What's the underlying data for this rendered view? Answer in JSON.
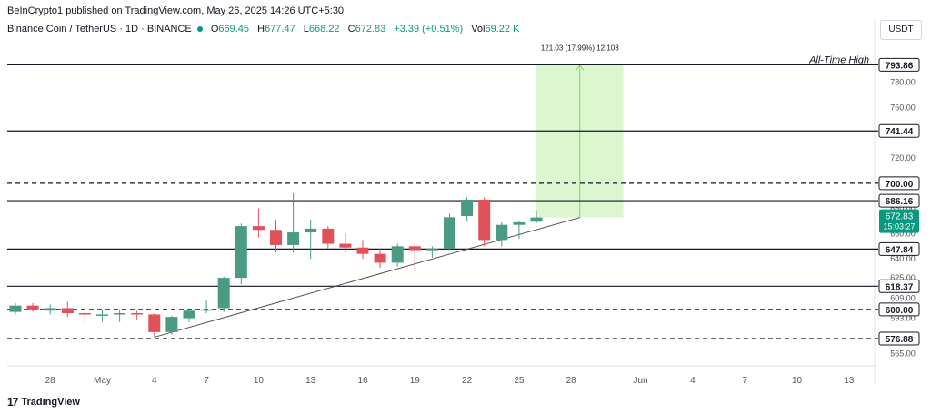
{
  "header": {
    "publisher": "BeInCrypto1 published on TradingView.com, May 26, 2025 14:26 UTC+5:30",
    "symbol": "Binance Coin / TetherUS · 1D · BINANCE",
    "open_label": "O",
    "open": "669.45",
    "high_label": "H",
    "high": "677.47",
    "low_label": "L",
    "low": "668.22",
    "close_label": "C",
    "close": "672.83",
    "change": "+3.39 (+0.51%)",
    "vol_label": "Vol",
    "vol": "69.22 K",
    "currency": "USDT"
  },
  "footer": {
    "logo_mark": "17",
    "brand": "TradingView"
  },
  "colors": {
    "up": "#4a9a84",
    "down": "#e0525a",
    "up_price": "#089981",
    "measure_fill": "#d6f5c8",
    "measure_line": "#7ed957",
    "axis": "#131722"
  },
  "chart_data": {
    "type": "candlestick",
    "title": "Binance Coin / TetherUS · 1D · BINANCE",
    "y_unit": "USDT",
    "ylim": [
      556,
      815
    ],
    "price_scale_ticks": [
      "780.00",
      "760.00",
      "720.00",
      "680.00",
      "660.00",
      "640.00",
      "625.00",
      "609.00",
      "593.00",
      "565.00"
    ],
    "x_tick_labels": [
      {
        "date": "2025-04-28",
        "label": "28"
      },
      {
        "date": "2025-05-01",
        "label": "May"
      },
      {
        "date": "2025-05-04",
        "label": "4"
      },
      {
        "date": "2025-05-07",
        "label": "7"
      },
      {
        "date": "2025-05-10",
        "label": "10"
      },
      {
        "date": "2025-05-13",
        "label": "13"
      },
      {
        "date": "2025-05-16",
        "label": "16"
      },
      {
        "date": "2025-05-19",
        "label": "19"
      },
      {
        "date": "2025-05-22",
        "label": "22"
      },
      {
        "date": "2025-05-25",
        "label": "25"
      },
      {
        "date": "2025-05-28",
        "label": "28"
      },
      {
        "date": "2025-06-01",
        "label": "Jun"
      },
      {
        "date": "2025-06-04",
        "label": "4"
      },
      {
        "date": "2025-06-07",
        "label": "7"
      },
      {
        "date": "2025-06-10",
        "label": "10"
      },
      {
        "date": "2025-06-13",
        "label": "13"
      }
    ],
    "candles": [
      {
        "date": "2025-04-26",
        "o": 598,
        "h": 605,
        "l": 596,
        "c": 603
      },
      {
        "date": "2025-04-27",
        "o": 603,
        "h": 605,
        "l": 598,
        "c": 600
      },
      {
        "date": "2025-04-28",
        "o": 599,
        "h": 604,
        "l": 596,
        "c": 601
      },
      {
        "date": "2025-04-29",
        "o": 601,
        "h": 606,
        "l": 594,
        "c": 597
      },
      {
        "date": "2025-04-30",
        "o": 597,
        "h": 601,
        "l": 588,
        "c": 596
      },
      {
        "date": "2025-05-01",
        "o": 596,
        "h": 600,
        "l": 590,
        "c": 596
      },
      {
        "date": "2025-05-02",
        "o": 596,
        "h": 600,
        "l": 590,
        "c": 597
      },
      {
        "date": "2025-05-03",
        "o": 597,
        "h": 599,
        "l": 592,
        "c": 596
      },
      {
        "date": "2025-05-04",
        "o": 596,
        "h": 597,
        "l": 578,
        "c": 582
      },
      {
        "date": "2025-05-05",
        "o": 582,
        "h": 595,
        "l": 580,
        "c": 594
      },
      {
        "date": "2025-05-06",
        "o": 593,
        "h": 601,
        "l": 590,
        "c": 599
      },
      {
        "date": "2025-05-07",
        "o": 599,
        "h": 607,
        "l": 597,
        "c": 600
      },
      {
        "date": "2025-05-08",
        "o": 601,
        "h": 626,
        "l": 598,
        "c": 625
      },
      {
        "date": "2025-05-09",
        "o": 625,
        "h": 668,
        "l": 620,
        "c": 666
      },
      {
        "date": "2025-05-10",
        "o": 666,
        "h": 680,
        "l": 657,
        "c": 663
      },
      {
        "date": "2025-05-11",
        "o": 663,
        "h": 671,
        "l": 645,
        "c": 651
      },
      {
        "date": "2025-05-12",
        "o": 651,
        "h": 692,
        "l": 645,
        "c": 661
      },
      {
        "date": "2025-05-13",
        "o": 661,
        "h": 671,
        "l": 640,
        "c": 664
      },
      {
        "date": "2025-05-14",
        "o": 664,
        "h": 666,
        "l": 648,
        "c": 652
      },
      {
        "date": "2025-05-15",
        "o": 652,
        "h": 660,
        "l": 645,
        "c": 649
      },
      {
        "date": "2025-05-16",
        "o": 649,
        "h": 655,
        "l": 640,
        "c": 644
      },
      {
        "date": "2025-05-17",
        "o": 644,
        "h": 648,
        "l": 633,
        "c": 637
      },
      {
        "date": "2025-05-18",
        "o": 637,
        "h": 652,
        "l": 634,
        "c": 650
      },
      {
        "date": "2025-05-19",
        "o": 650,
        "h": 652,
        "l": 631,
        "c": 647
      },
      {
        "date": "2025-05-20",
        "o": 647,
        "h": 650,
        "l": 641,
        "c": 648
      },
      {
        "date": "2025-05-21",
        "o": 648,
        "h": 676,
        "l": 647,
        "c": 673
      },
      {
        "date": "2025-05-22",
        "o": 674,
        "h": 689,
        "l": 670,
        "c": 687
      },
      {
        "date": "2025-05-23",
        "o": 687,
        "h": 689,
        "l": 650,
        "c": 655
      },
      {
        "date": "2025-05-24",
        "o": 655,
        "h": 669,
        "l": 650,
        "c": 667
      },
      {
        "date": "2025-05-25",
        "o": 667,
        "h": 670,
        "l": 656,
        "c": 669
      },
      {
        "date": "2025-05-26",
        "o": 669.45,
        "h": 677.47,
        "l": 668.22,
        "c": 672.83
      }
    ],
    "horizontal_levels": [
      {
        "price": 793.86,
        "label": "793.86",
        "style": "solid",
        "note": "All-Time High"
      },
      {
        "price": 741.44,
        "label": "741.44",
        "style": "solid"
      },
      {
        "price": 700.0,
        "label": "700.00",
        "style": "dashed"
      },
      {
        "price": 686.16,
        "label": "686.16",
        "style": "solid"
      },
      {
        "price": 647.84,
        "label": "647.84",
        "style": "solid"
      },
      {
        "price": 618.37,
        "label": "618.37",
        "style": "solid"
      },
      {
        "price": 600.0,
        "label": "600.00",
        "style": "dashed"
      },
      {
        "price": 576.88,
        "label": "576.88",
        "style": "dashed"
      }
    ],
    "trendline": {
      "from": {
        "date": "2025-05-04",
        "price": 578
      },
      "to": {
        "date": "2025-05-28.5",
        "price": 672.83
      }
    },
    "measure": {
      "from_date": "2025-05-26",
      "to_date": "2025-05-31",
      "bottom_price": 672.83,
      "top_price": 793.86,
      "arrow_date": "2025-05-28.5",
      "label": "121.03 (17.99%) 12,103"
    },
    "last_price": {
      "value": "672.83",
      "countdown": "15:03:27"
    }
  }
}
